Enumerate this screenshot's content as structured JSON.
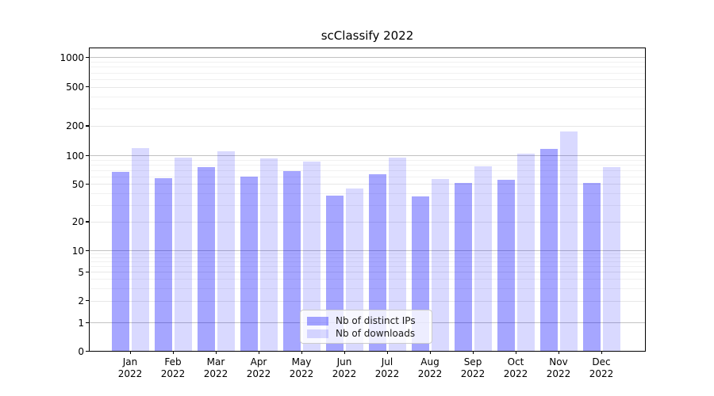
{
  "chart_data": {
    "type": "bar",
    "title": "scClassify 2022",
    "yscale": "symlog",
    "grid": true,
    "legend_position": "lower center",
    "yticks": [
      0,
      1,
      2,
      5,
      10,
      20,
      50,
      100,
      200,
      500,
      1000
    ],
    "ylim": [
      0,
      1400
    ],
    "categories": [
      "Jan",
      "Feb",
      "Mar",
      "Apr",
      "May",
      "Jun",
      "Jul",
      "Aug",
      "Sep",
      "Oct",
      "Nov",
      "Dec"
    ],
    "category_year": "2022",
    "series": [
      {
        "name": "Nb of distinct IPs",
        "color": "#a6a6ff",
        "base_color": "#0000ff",
        "alpha": 0.35,
        "values": [
          67,
          58,
          75,
          60,
          68,
          38,
          63,
          37,
          51,
          55,
          116,
          51
        ]
      },
      {
        "name": "Nb of downloads",
        "color": "#d9d9ff",
        "base_color": "#0000ff",
        "alpha": 0.15,
        "values": [
          118,
          95,
          110,
          94,
          86,
          45,
          95,
          57,
          77,
          104,
          177,
          75
        ]
      }
    ],
    "grid_colors": {
      "decade": "#c2c2c2",
      "labeled_minor": "#e7e7e7",
      "minor": "#f1f1f1"
    }
  }
}
